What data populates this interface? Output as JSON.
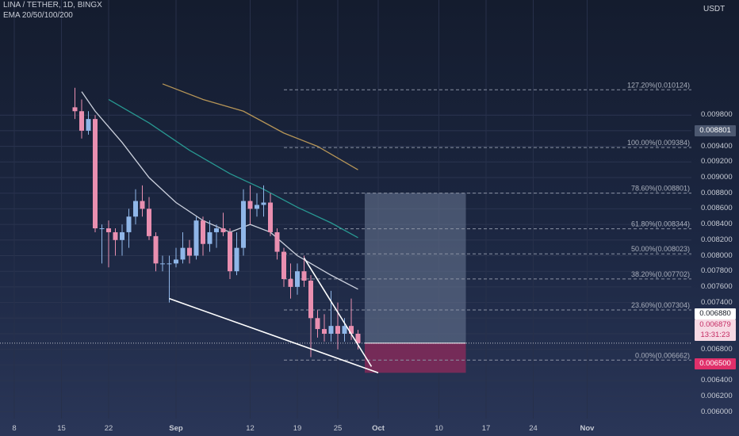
{
  "header": {
    "symbol_line": "LINA / TETHER, 1D, BINGX",
    "indicator_line": "EMA 20/50/100/200"
  },
  "price_axis": {
    "currency": "USDT",
    "ticks": [
      "0.009800",
      "0.009600",
      "0.009400",
      "0.009200",
      "0.009000",
      "0.008800",
      "0.008600",
      "0.008400",
      "0.008200",
      "0.008000",
      "0.007800",
      "0.007600",
      "0.007400",
      "0.007200",
      "0.007000",
      "0.006800",
      "0.006600",
      "0.006400",
      "0.006200",
      "0.006000"
    ],
    "badges": {
      "target": "0.008801",
      "crosshair": "0.006880",
      "last_price": "0.006879",
      "countdown": "13:31:23",
      "stop": "0.006500"
    }
  },
  "date_axis": {
    "labels": [
      {
        "label": "8",
        "day": 8
      },
      {
        "label": "15",
        "day": 15
      },
      {
        "label": "22",
        "day": 22
      },
      {
        "label": "Sep",
        "day": 32
      },
      {
        "label": "12",
        "day": 43
      },
      {
        "label": "19",
        "day": 50
      },
      {
        "label": "25",
        "day": 56
      },
      {
        "label": "Oct",
        "day": 62
      },
      {
        "label": "10",
        "day": 71
      },
      {
        "label": "17",
        "day": 78
      },
      {
        "label": "24",
        "day": 85
      },
      {
        "label": "Nov",
        "day": 93
      }
    ]
  },
  "colors": {
    "up": "#8fb6e8",
    "down": "#e98fb0",
    "ema20": "#dfe3ee",
    "ema50": "#2aa59b",
    "ema200": "#c8a25b",
    "target_zone": "#6b7a95",
    "stop_zone": "#8a2a5a",
    "stop_badge": "#e0306a"
  },
  "chart_data": {
    "type": "candlestick",
    "title": "LINA / TETHER, 1D, BINGX",
    "ylabel": "USDT",
    "ylim": [
      0.006,
      0.0102
    ],
    "x_unit": "day index (Aug 1 = 1)",
    "candles": [
      {
        "day": 17,
        "o": 0.0099,
        "h": 0.01015,
        "l": 0.00975,
        "c": 0.00985
      },
      {
        "day": 18,
        "o": 0.00985,
        "h": 0.01,
        "l": 0.0095,
        "c": 0.0096
      },
      {
        "day": 19,
        "o": 0.0096,
        "h": 0.00985,
        "l": 0.00955,
        "c": 0.00975
      },
      {
        "day": 20,
        "o": 0.00975,
        "h": 0.0098,
        "l": 0.0083,
        "c": 0.00835
      },
      {
        "day": 21,
        "o": 0.00835,
        "h": 0.0084,
        "l": 0.0079,
        "c": 0.00835
      },
      {
        "day": 22,
        "o": 0.00835,
        "h": 0.00845,
        "l": 0.00785,
        "c": 0.0083
      },
      {
        "day": 23,
        "o": 0.0083,
        "h": 0.00835,
        "l": 0.008,
        "c": 0.0082
      },
      {
        "day": 24,
        "o": 0.0082,
        "h": 0.0084,
        "l": 0.008,
        "c": 0.0083
      },
      {
        "day": 25,
        "o": 0.0083,
        "h": 0.0086,
        "l": 0.0081,
        "c": 0.0085
      },
      {
        "day": 26,
        "o": 0.0085,
        "h": 0.00885,
        "l": 0.0084,
        "c": 0.0087
      },
      {
        "day": 27,
        "o": 0.0087,
        "h": 0.0089,
        "l": 0.0085,
        "c": 0.0086
      },
      {
        "day": 28,
        "o": 0.0086,
        "h": 0.00875,
        "l": 0.0082,
        "c": 0.00825
      },
      {
        "day": 29,
        "o": 0.00825,
        "h": 0.0083,
        "l": 0.0078,
        "c": 0.0079
      },
      {
        "day": 30,
        "o": 0.0079,
        "h": 0.008,
        "l": 0.0078,
        "c": 0.0079
      },
      {
        "day": 31,
        "o": 0.0079,
        "h": 0.008,
        "l": 0.0074,
        "c": 0.0079
      },
      {
        "day": 32,
        "o": 0.0079,
        "h": 0.0081,
        "l": 0.00785,
        "c": 0.00795
      },
      {
        "day": 33,
        "o": 0.00795,
        "h": 0.0083,
        "l": 0.0079,
        "c": 0.0081
      },
      {
        "day": 34,
        "o": 0.0081,
        "h": 0.0082,
        "l": 0.0079,
        "c": 0.008
      },
      {
        "day": 35,
        "o": 0.008,
        "h": 0.0085,
        "l": 0.00795,
        "c": 0.00845
      },
      {
        "day": 36,
        "o": 0.00845,
        "h": 0.0085,
        "l": 0.008,
        "c": 0.00815
      },
      {
        "day": 37,
        "o": 0.00815,
        "h": 0.00845,
        "l": 0.00805,
        "c": 0.0083
      },
      {
        "day": 38,
        "o": 0.0083,
        "h": 0.0084,
        "l": 0.0081,
        "c": 0.00835
      },
      {
        "day": 39,
        "o": 0.00835,
        "h": 0.00855,
        "l": 0.00825,
        "c": 0.0083
      },
      {
        "day": 40,
        "o": 0.0083,
        "h": 0.00835,
        "l": 0.0077,
        "c": 0.0078
      },
      {
        "day": 41,
        "o": 0.0078,
        "h": 0.0083,
        "l": 0.00775,
        "c": 0.0081
      },
      {
        "day": 42,
        "o": 0.0081,
        "h": 0.00885,
        "l": 0.008,
        "c": 0.0087
      },
      {
        "day": 43,
        "o": 0.0087,
        "h": 0.0089,
        "l": 0.0084,
        "c": 0.0086
      },
      {
        "day": 44,
        "o": 0.0086,
        "h": 0.0088,
        "l": 0.0085,
        "c": 0.00865
      },
      {
        "day": 45,
        "o": 0.00865,
        "h": 0.0089,
        "l": 0.0085,
        "c": 0.00868
      },
      {
        "day": 46,
        "o": 0.00868,
        "h": 0.0088,
        "l": 0.00825,
        "c": 0.0083
      },
      {
        "day": 47,
        "o": 0.0083,
        "h": 0.00835,
        "l": 0.00795,
        "c": 0.00805
      },
      {
        "day": 48,
        "o": 0.00805,
        "h": 0.0081,
        "l": 0.0076,
        "c": 0.0077
      },
      {
        "day": 49,
        "o": 0.0077,
        "h": 0.0079,
        "l": 0.00745,
        "c": 0.0076
      },
      {
        "day": 50,
        "o": 0.0076,
        "h": 0.0079,
        "l": 0.0075,
        "c": 0.0078
      },
      {
        "day": 51,
        "o": 0.0078,
        "h": 0.008,
        "l": 0.0076,
        "c": 0.00768
      },
      {
        "day": 52,
        "o": 0.00768,
        "h": 0.00775,
        "l": 0.0067,
        "c": 0.0072
      },
      {
        "day": 53,
        "o": 0.0072,
        "h": 0.0073,
        "l": 0.00695,
        "c": 0.00706
      },
      {
        "day": 54,
        "o": 0.00706,
        "h": 0.00725,
        "l": 0.0069,
        "c": 0.007
      },
      {
        "day": 55,
        "o": 0.007,
        "h": 0.00755,
        "l": 0.0069,
        "c": 0.0071
      },
      {
        "day": 56,
        "o": 0.0071,
        "h": 0.0074,
        "l": 0.0068,
        "c": 0.007
      },
      {
        "day": 57,
        "o": 0.007,
        "h": 0.0072,
        "l": 0.0069,
        "c": 0.0071
      },
      {
        "day": 58,
        "o": 0.0071,
        "h": 0.00745,
        "l": 0.00692,
        "c": 0.007
      },
      {
        "day": 59,
        "o": 0.007,
        "h": 0.00705,
        "l": 0.0068,
        "c": 0.00688
      }
    ],
    "ema_lines": [
      {
        "name": "EMA 20",
        "points": [
          [
            18,
            0.0101
          ],
          [
            20,
            0.00985
          ],
          [
            24,
            0.00945
          ],
          [
            28,
            0.009
          ],
          [
            32,
            0.00868
          ],
          [
            36,
            0.00845
          ],
          [
            40,
            0.0083
          ],
          [
            43,
            0.0084
          ],
          [
            46,
            0.0083
          ],
          [
            50,
            0.008
          ],
          [
            55,
            0.00775
          ],
          [
            59,
            0.00757
          ]
        ]
      },
      {
        "name": "EMA 50",
        "points": [
          [
            22,
            0.01
          ],
          [
            28,
            0.0097
          ],
          [
            34,
            0.00935
          ],
          [
            40,
            0.00905
          ],
          [
            45,
            0.00885
          ],
          [
            50,
            0.00862
          ],
          [
            55,
            0.00842
          ],
          [
            59,
            0.00823
          ]
        ]
      },
      {
        "name": "EMA 200",
        "points": [
          [
            30,
            0.0102
          ],
          [
            36,
            0.01
          ],
          [
            42,
            0.00985
          ],
          [
            48,
            0.00957
          ],
          [
            53,
            0.0094
          ],
          [
            59,
            0.0091
          ]
        ]
      }
    ],
    "fibonacci": [
      {
        "label": "127.20%(0.010124)",
        "price": 0.010124
      },
      {
        "label": "100.00%(0.009384)",
        "price": 0.009384
      },
      {
        "label": "78.60%(0.008801)",
        "price": 0.008801
      },
      {
        "label": "61.80%(0.008344)",
        "price": 0.008344
      },
      {
        "label": "50.00%(0.008023)",
        "price": 0.008023
      },
      {
        "label": "38.20%(0.007702)",
        "price": 0.007702
      },
      {
        "label": "23.60%(0.007304)",
        "price": 0.007304
      },
      {
        "label": "0.00%(0.006662)",
        "price": 0.006662
      }
    ],
    "trendlines": [
      {
        "from": [
          31,
          0.00745
        ],
        "to": [
          62,
          0.0065
        ]
      },
      {
        "from": [
          51,
          0.00797
        ],
        "to": [
          61,
          0.00658
        ]
      }
    ],
    "position": {
      "entry": 0.00688,
      "target": 0.008801,
      "stop": 0.0065,
      "start_day": 60,
      "end_day": 75
    }
  }
}
